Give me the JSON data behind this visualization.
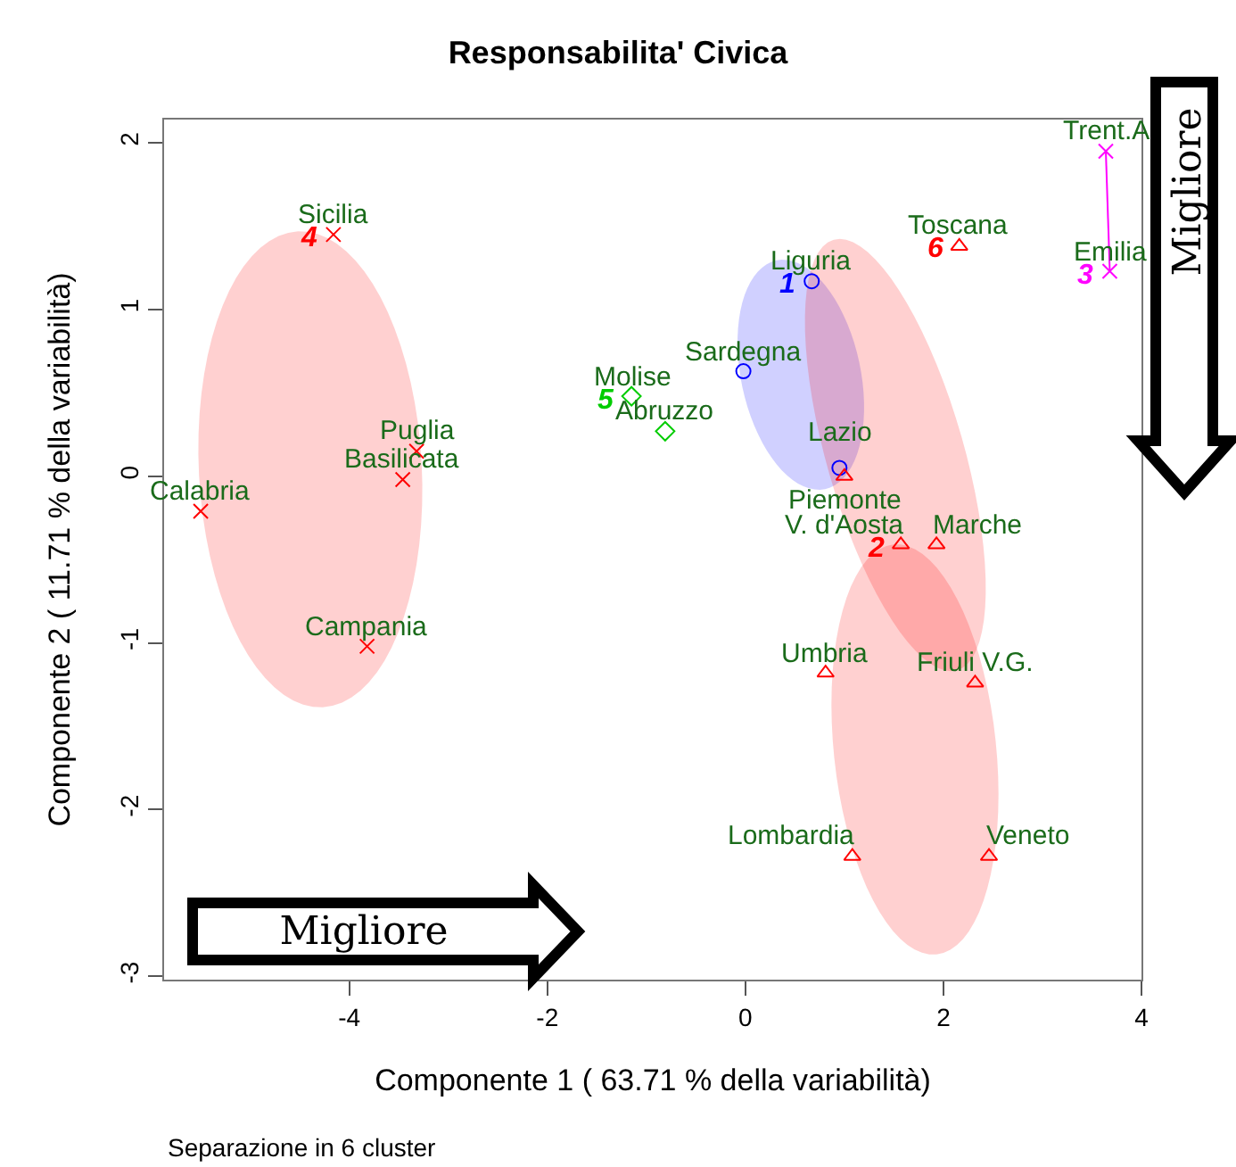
{
  "chart_data": {
    "type": "scatter",
    "title": "Responsabilita' Civica",
    "xlabel": "Componente 1 ( 63.71 % della variabilità)",
    "ylabel": "Componente 2 ( 11.71 % della variabilità)",
    "xlim": [
      -5.87,
      4.0
    ],
    "ylim": [
      -3.02,
      2.14
    ],
    "xticks": [
      -4,
      -2,
      0,
      2,
      4
    ],
    "yticks": [
      -3,
      -2,
      -1,
      0,
      1,
      2
    ],
    "grid": false,
    "legend": false,
    "series": [
      {
        "name": "4",
        "color": "#ff0000",
        "marker": "cross",
        "x": [
          -4.16,
          -3.32,
          -3.46,
          -5.5,
          -3.82
        ],
        "values": [
          1.45,
          0.15,
          -0.02,
          -0.21,
          -1.02
        ]
      },
      {
        "name": "5",
        "color": "#00cc00",
        "marker": "diamond",
        "x": [
          -1.15,
          -0.81
        ],
        "values": [
          0.48,
          0.27
        ]
      },
      {
        "name": "1",
        "color": "#0000ff",
        "marker": "circle",
        "x": [
          0.67,
          -0.02,
          0.95
        ],
        "values": [
          1.17,
          0.63,
          0.05
        ]
      },
      {
        "name": "6",
        "color": "#ff0000",
        "marker": "triangle",
        "x": [
          2.16,
          1.93,
          0.81,
          1.0
        ],
        "values": [
          1.38,
          -0.41,
          -1.18,
          0.0
        ]
      },
      {
        "name": "3",
        "color": "#ff00ff",
        "type": "line",
        "marker": "cross",
        "x": [
          3.68,
          3.64
        ],
        "values": [
          1.23,
          1.95
        ]
      },
      {
        "name": "2",
        "color": "#ff0000",
        "marker": "triangle",
        "x": [
          1.57,
          2.32,
          1.08,
          2.46
        ],
        "values": [
          -0.41,
          -1.24,
          -2.28,
          -2.28
        ]
      }
    ],
    "annotations": [
      "Separazione in 6 cluster",
      "Migliore",
      "Migliore",
      {
        "text": "Sicilia",
        "x": -4.16,
        "y": 1.45
      },
      {
        "text": "Puglia",
        "x": -3.32,
        "y": 0.15
      },
      {
        "text": "Basilicata",
        "x": -3.46,
        "y": -0.02
      },
      {
        "text": "Calabria",
        "x": -5.5,
        "y": -0.21
      },
      {
        "text": "Campania",
        "x": -3.82,
        "y": -1.02
      },
      {
        "text": "Molise",
        "x": -1.15,
        "y": 0.48
      },
      {
        "text": "Abruzzo",
        "x": -0.81,
        "y": 0.27
      },
      {
        "text": "Liguria",
        "x": 0.67,
        "y": 1.17
      },
      {
        "text": "Sardegna",
        "x": -0.02,
        "y": 0.63
      },
      {
        "text": "Lazio",
        "x": 0.95,
        "y": 0.05
      },
      {
        "text": "Piemonte",
        "x": 1.0,
        "y": 0.0
      },
      {
        "text": "Toscana",
        "x": 2.16,
        "y": 1.38
      },
      {
        "text": "Marche",
        "x": 1.93,
        "y": -0.41
      },
      {
        "text": "Umbria",
        "x": 0.81,
        "y": -1.18
      },
      {
        "text": "Trent.A",
        "x": 3.64,
        "y": 1.95
      },
      {
        "text": "Emilia",
        "x": 3.68,
        "y": 1.23
      },
      {
        "text": "V. d'Aosta",
        "x": 1.57,
        "y": -0.41
      },
      {
        "text": "Friuli V.G.",
        "x": 2.32,
        "y": -1.24
      },
      {
        "text": "Lombardia",
        "x": 1.08,
        "y": -2.28
      },
      {
        "text": "Veneto",
        "x": 2.46,
        "y": -2.28
      }
    ]
  }
}
